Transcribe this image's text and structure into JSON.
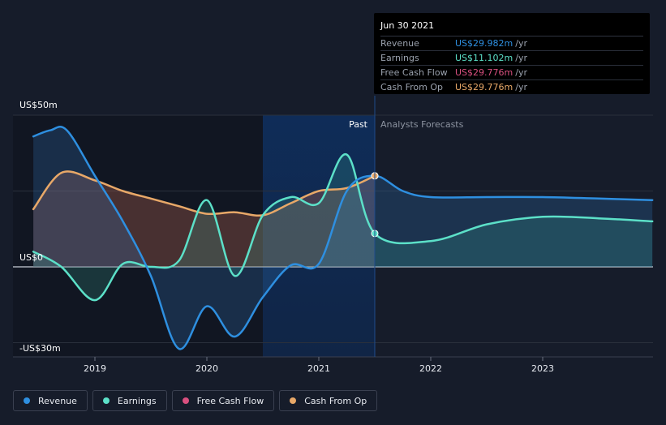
{
  "tooltip": {
    "date": "Jun 30 2021",
    "rows": [
      {
        "name": "Revenue",
        "value": "US$29.982m",
        "unit": "/yr",
        "color": "#2e8fe0"
      },
      {
        "name": "Earnings",
        "value": "US$11.102m",
        "unit": "/yr",
        "color": "#5ce0c8"
      },
      {
        "name": "Free Cash Flow",
        "value": "US$29.776m",
        "unit": "/yr",
        "color": "#d9507f"
      },
      {
        "name": "Cash From Op",
        "value": "US$29.776m",
        "unit": "/yr",
        "color": "#e8a868"
      }
    ]
  },
  "labels": {
    "past": "Past",
    "forecast": "Analysts Forecasts",
    "y_top": "US$50m",
    "y_zero": "US$0",
    "y_bottom": "-US$30m"
  },
  "legend": [
    {
      "label": "Revenue",
      "color": "#2e8fe0"
    },
    {
      "label": "Earnings",
      "color": "#5ce0c8"
    },
    {
      "label": "Free Cash Flow",
      "color": "#d9507f"
    },
    {
      "label": "Cash From Op",
      "color": "#e8a868"
    }
  ],
  "chart_data": {
    "type": "line",
    "ylim": [
      -30,
      50
    ],
    "xlim": [
      2018.45,
      2023.98
    ],
    "x_ticks": [
      2019,
      2020,
      2021,
      2022,
      2023
    ],
    "x_tick_labels": [
      "2019",
      "2020",
      "2021",
      "2022",
      "2023"
    ],
    "past_end": 2021.5,
    "highlight_start": 2020.5,
    "series": [
      {
        "name": "Revenue",
        "color": "#2e8fe0",
        "points": [
          [
            2018.45,
            43
          ],
          [
            2018.6,
            45
          ],
          [
            2018.75,
            45
          ],
          [
            2019.0,
            30
          ],
          [
            2019.25,
            15
          ],
          [
            2019.5,
            -3
          ],
          [
            2019.75,
            -27
          ],
          [
            2020.0,
            -13
          ],
          [
            2020.25,
            -23
          ],
          [
            2020.5,
            -10
          ],
          [
            2020.75,
            0.5
          ],
          [
            2021.0,
            1
          ],
          [
            2021.25,
            25
          ],
          [
            2021.5,
            30
          ],
          [
            2021.75,
            25
          ],
          [
            2022.0,
            23
          ],
          [
            2022.5,
            23
          ],
          [
            2023.0,
            23
          ],
          [
            2023.5,
            22.5
          ],
          [
            2023.98,
            22
          ]
        ]
      },
      {
        "name": "Earnings",
        "color": "#5ce0c8",
        "points": [
          [
            2018.45,
            5
          ],
          [
            2018.7,
            0
          ],
          [
            2019.0,
            -11
          ],
          [
            2019.25,
            1
          ],
          [
            2019.5,
            0
          ],
          [
            2019.75,
            2
          ],
          [
            2020.0,
            22
          ],
          [
            2020.25,
            -3
          ],
          [
            2020.5,
            17
          ],
          [
            2020.75,
            23
          ],
          [
            2021.0,
            21
          ],
          [
            2021.25,
            37
          ],
          [
            2021.5,
            11
          ],
          [
            2022.0,
            8.5
          ],
          [
            2022.5,
            14
          ],
          [
            2023.0,
            16.5
          ],
          [
            2023.5,
            16
          ],
          [
            2023.98,
            15
          ]
        ]
      },
      {
        "name": "Cash From Op",
        "color": "#e8a868",
        "points": [
          [
            2018.45,
            19
          ],
          [
            2018.7,
            31
          ],
          [
            2019.0,
            28.5
          ],
          [
            2019.25,
            25
          ],
          [
            2019.5,
            22.5
          ],
          [
            2019.75,
            20
          ],
          [
            2020.0,
            17.5
          ],
          [
            2020.25,
            18
          ],
          [
            2020.5,
            17
          ],
          [
            2020.75,
            21
          ],
          [
            2021.0,
            25
          ],
          [
            2021.25,
            26
          ],
          [
            2021.5,
            30
          ]
        ]
      }
    ]
  }
}
